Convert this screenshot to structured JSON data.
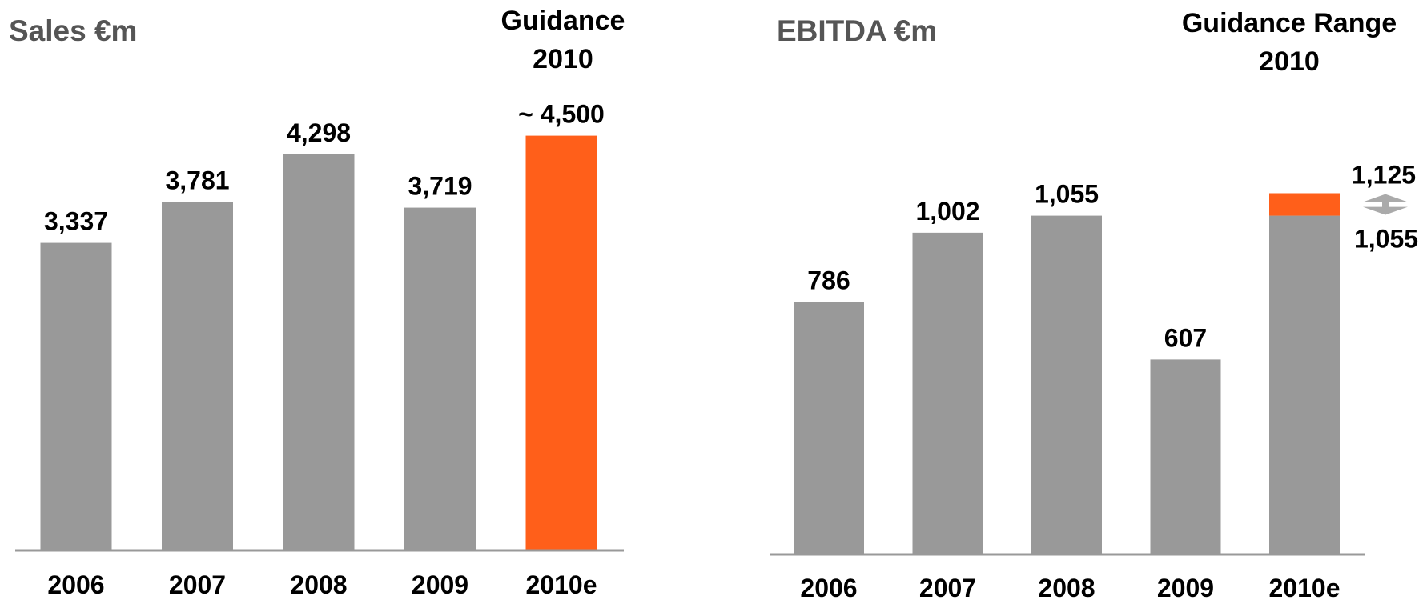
{
  "chart_data": [
    {
      "type": "bar",
      "title": "Sales €m",
      "annotation": "Guidance 2010",
      "categories": [
        "2006",
        "2007",
        "2008",
        "2009",
        "2010e"
      ],
      "values": [
        3337,
        3781,
        4298,
        3719,
        4500
      ],
      "value_labels": [
        "3,337",
        "3,781",
        "4,298",
        "3,719",
        "~ 4,500"
      ],
      "colors": [
        "#999999",
        "#999999",
        "#999999",
        "#999999",
        "#ff5f1a"
      ],
      "ylim": [
        0,
        5000
      ]
    },
    {
      "type": "range_bar",
      "title": "EBITDA €m",
      "annotation": "Guidance Range 2010",
      "categories": [
        "2006",
        "2007",
        "2008",
        "2009",
        "2010e"
      ],
      "values": [
        786,
        1002,
        1055,
        607,
        null
      ],
      "value_labels": [
        "786",
        "1,002",
        "1,055",
        "607",
        null
      ],
      "color": "#999999",
      "range": {
        "low": 1055,
        "high": 1125,
        "low_label": "1,055",
        "high_label": "1,125",
        "color": "#ff5f1a"
      },
      "ylim": [
        0,
        1500
      ]
    }
  ]
}
